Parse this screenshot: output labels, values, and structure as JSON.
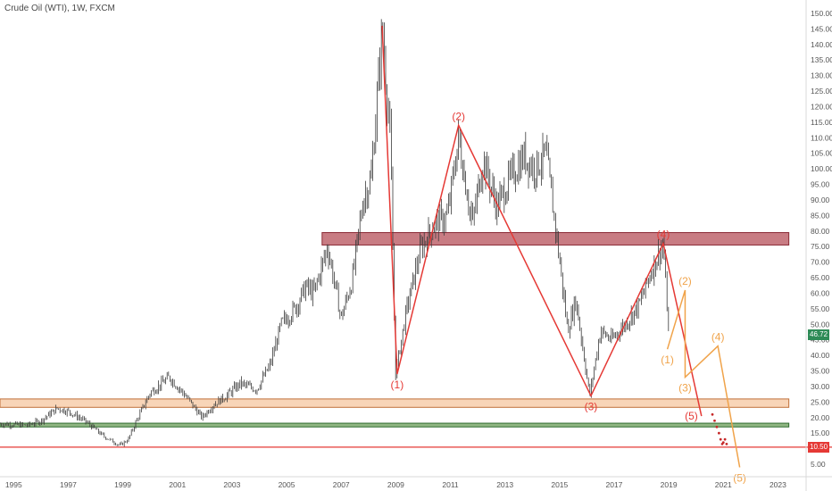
{
  "header": {
    "title": "Crude Oil (WTI), 1W, FXCM"
  },
  "price_tags": {
    "last": {
      "text": "46.72",
      "color": "#2e8b57"
    },
    "support": {
      "text": "10.50",
      "color": "#e53935"
    }
  },
  "chart_data": {
    "type": "line",
    "title": "Crude Oil (WTI), 1W, FXCM",
    "xlim": [
      1994.5,
      2024.0
    ],
    "ylim": [
      3.0,
      152.0
    ],
    "y_ticks": [
      150,
      145,
      140,
      135,
      130,
      125,
      120,
      115,
      110,
      105,
      100,
      95,
      90,
      85,
      80,
      75,
      70,
      65,
      60,
      55,
      50,
      45,
      40,
      35,
      30,
      25,
      20,
      15,
      10,
      5
    ],
    "y_tick_labels": [
      "150.00",
      "145.00",
      "140.00",
      "135.00",
      "130.00",
      "125.00",
      "120.00",
      "115.00",
      "110.00",
      "105.00",
      "100.00",
      "95.00",
      "90.00",
      "85.00",
      "80.00",
      "75.00",
      "70.00",
      "65.00",
      "60.00",
      "55.00",
      "50.00",
      "45.00",
      "40.00",
      "35.00",
      "30.00",
      "25.00",
      "20.00",
      "15.00",
      "10.00",
      "5.00"
    ],
    "x_ticks": [
      1995,
      1997,
      1999,
      2001,
      2003,
      2005,
      2007,
      2009,
      2011,
      2013,
      2015,
      2017,
      2019,
      2021,
      2023
    ],
    "x_tick_labels": [
      "1995",
      "1997",
      "1999",
      "2001",
      "2003",
      "2005",
      "2007",
      "2009",
      "2011",
      "2013",
      "2015",
      "2017",
      "2019",
      "2021",
      "2023"
    ],
    "colors": {
      "bars": "#3a3a3a",
      "wave_primary": "#e53935",
      "wave_projection": "#f0a34a",
      "dots": "#c62828"
    },
    "price_series": {
      "name": "WTI weekly",
      "x": [
        1994.5,
        1995.5,
        1996.0,
        1996.6,
        1997.0,
        1997.6,
        1998.3,
        1998.9,
        1999.2,
        1999.5,
        2000.0,
        2000.7,
        2001.3,
        2001.9,
        2002.3,
        2002.8,
        2003.3,
        2003.9,
        2004.4,
        2004.8,
        2005.3,
        2005.7,
        2006.0,
        2006.5,
        2007.0,
        2007.4,
        2007.8,
        2008.1,
        2008.5,
        2008.8,
        2008.99,
        2009.4,
        2009.9,
        2010.4,
        2010.9,
        2011.3,
        2011.8,
        2012.2,
        2012.7,
        2013.2,
        2013.7,
        2014.1,
        2014.5,
        2014.9,
        2015.3,
        2015.6,
        2016.1,
        2016.5,
        2016.9,
        2017.4,
        2017.9,
        2018.4,
        2018.8,
        2019.0
      ],
      "y": [
        18,
        17.5,
        19,
        23,
        22,
        19,
        14,
        11,
        13,
        19,
        28,
        33,
        27,
        20,
        24,
        27,
        31,
        29,
        37,
        50,
        55,
        62,
        60,
        75,
        52,
        64,
        90,
        97,
        145,
        110,
        34,
        55,
        74,
        82,
        85,
        110,
        82,
        103,
        88,
        97,
        104,
        100,
        105,
        78,
        48,
        58,
        27,
        48,
        45,
        50,
        56,
        68,
        76,
        46.72
      ]
    },
    "zones": [
      {
        "name": "resistance-zone",
        "y_low": 75.5,
        "y_high": 79.5,
        "x_start": 2006.3,
        "x_end": 2023.4,
        "fill": "#b5505a",
        "stroke": "#8b2a35"
      },
      {
        "name": "support-zone-upper",
        "y_low": 23.3,
        "y_high": 26.0,
        "x_start": 1994.5,
        "x_end": 2023.4,
        "fill": "#f6c7a0",
        "stroke": "#c0703a"
      },
      {
        "name": "support-zone-green",
        "y_low": 17.0,
        "y_high": 18.2,
        "x_start": 1994.5,
        "x_end": 2023.4,
        "fill": "#6b9e5a",
        "stroke": "#2e6b2e"
      }
    ],
    "hlines": [
      {
        "name": "support-line",
        "y": 10.5,
        "color": "#e53935"
      }
    ],
    "wave_main": {
      "x": [
        2008.5,
        2009.05,
        2011.3,
        2016.15,
        2018.8,
        2020.2
      ],
      "y": [
        146,
        34,
        114,
        27,
        76,
        20.5
      ],
      "labels": [
        {
          "text": "(1)",
          "x": 2009.05,
          "y": 34,
          "pos": "below"
        },
        {
          "text": "(2)",
          "x": 2011.3,
          "y": 114,
          "pos": "above"
        },
        {
          "text": "(3)",
          "x": 2016.15,
          "y": 27,
          "pos": "below"
        },
        {
          "text": "(4)",
          "x": 2018.8,
          "y": 76,
          "pos": "above"
        },
        {
          "text": "(5)",
          "x": 2020.2,
          "y": 20.5,
          "pos": "left"
        }
      ]
    },
    "wave_projection": {
      "x": [
        2018.95,
        2019.6,
        2019.6,
        2020.8,
        2021.6
      ],
      "y": [
        42,
        61,
        33,
        43,
        4
      ],
      "labels": [
        {
          "text": "(1)",
          "x": 2018.95,
          "y": 42,
          "pos": "below"
        },
        {
          "text": "(2)",
          "x": 2019.6,
          "y": 61,
          "pos": "above"
        },
        {
          "text": "(3)",
          "x": 2019.6,
          "y": 33,
          "pos": "below"
        },
        {
          "text": "(4)",
          "x": 2020.8,
          "y": 43,
          "pos": "above"
        },
        {
          "text": "(5)",
          "x": 2021.6,
          "y": 4,
          "pos": "below"
        }
      ]
    },
    "projection_dots": {
      "x": [
        2020.6,
        2020.68,
        2020.76,
        2020.84,
        2020.9,
        2020.96,
        2021.0,
        2021.06,
        2021.12
      ],
      "y": [
        21,
        19,
        17,
        15,
        13,
        11.5,
        12,
        13,
        11.5
      ]
    }
  }
}
